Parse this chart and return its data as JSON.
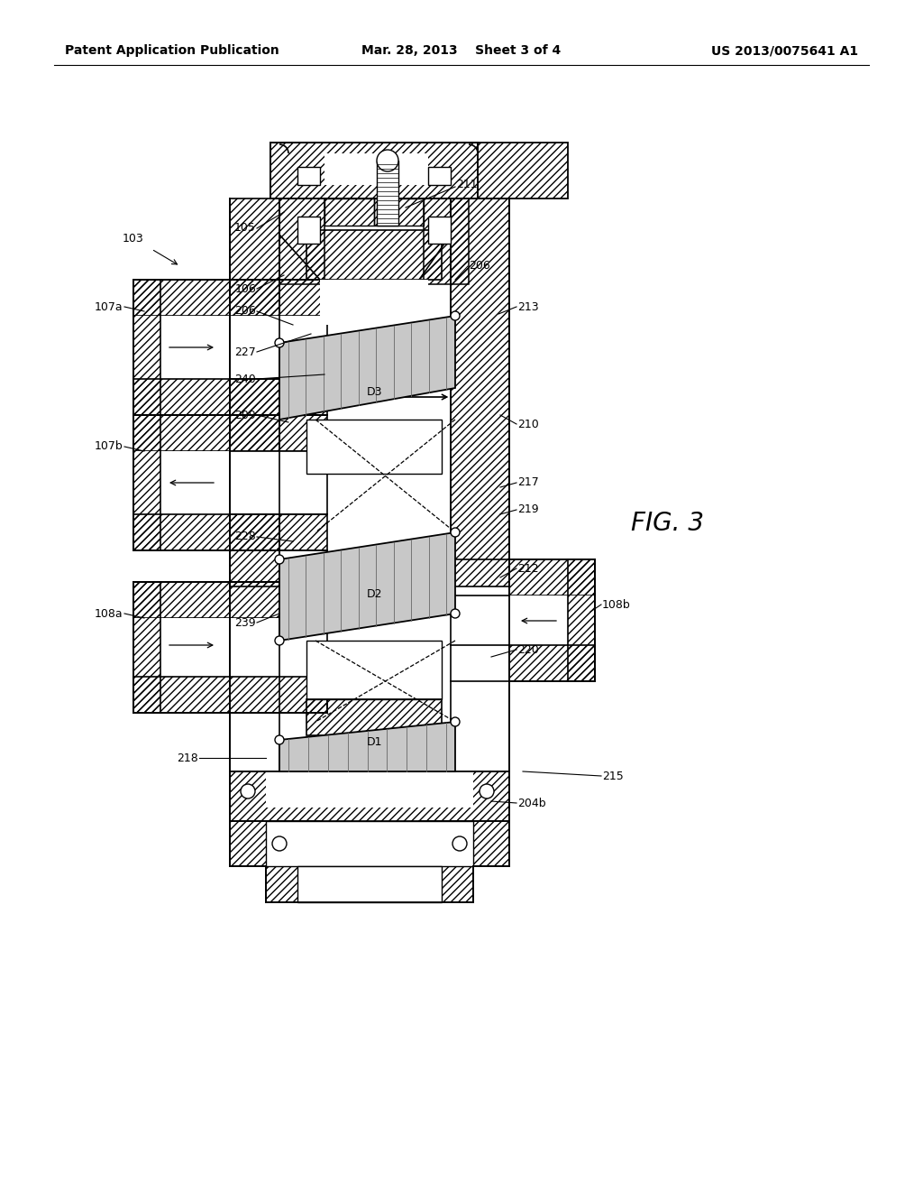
{
  "header_left": "Patent Application Publication",
  "header_center": "Mar. 28, 2013  Sheet 3 of 4",
  "header_right": "US 2013/0075641 A1",
  "fig_label": "FIG. 3",
  "background_color": "#ffffff"
}
